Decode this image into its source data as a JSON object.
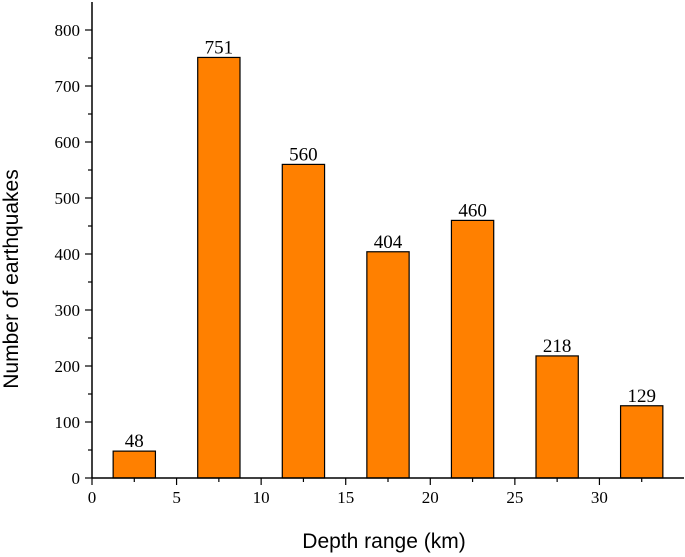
{
  "chart_data": {
    "type": "bar",
    "xlabel": "Depth range (km)",
    "ylabel": "Number of earthquakes",
    "xlim": [
      0,
      35
    ],
    "ylim": [
      0,
      850
    ],
    "xticks": [
      0,
      5,
      10,
      15,
      20,
      25,
      30
    ],
    "yticks": [
      0,
      100,
      200,
      300,
      400,
      500,
      600,
      700,
      800
    ],
    "bar_width": 2.5,
    "bar_color": "#ff8000",
    "bars": [
      {
        "x": 2.5,
        "value": 48,
        "label": "48"
      },
      {
        "x": 7.5,
        "value": 751,
        "label": "751"
      },
      {
        "x": 12.5,
        "value": 560,
        "label": "560"
      },
      {
        "x": 17.5,
        "value": 404,
        "label": "404"
      },
      {
        "x": 22.5,
        "value": 460,
        "label": "460"
      },
      {
        "x": 27.5,
        "value": 218,
        "label": "218"
      },
      {
        "x": 32.5,
        "value": 129,
        "label": "129"
      }
    ],
    "grid": false,
    "legend": "none"
  }
}
